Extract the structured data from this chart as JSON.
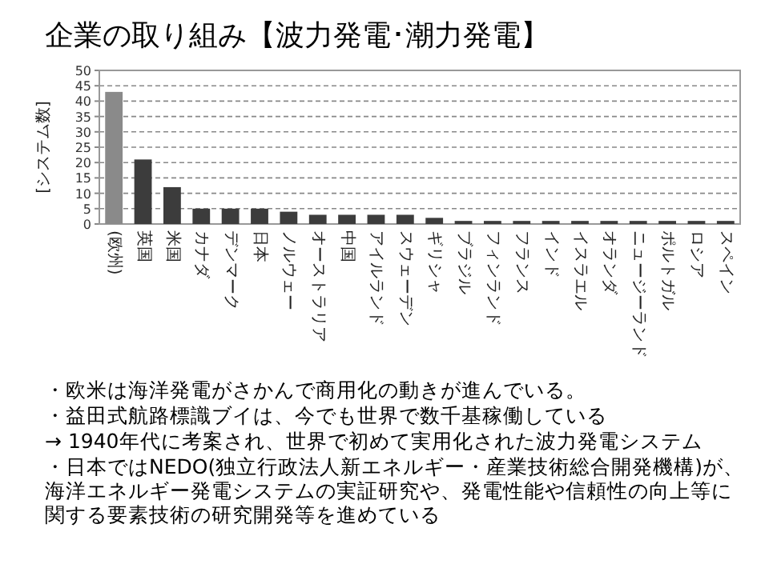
{
  "chart_data": {
    "type": "bar",
    "title": "企業の取り組み【波力発電･潮力発電】",
    "ylabel": "[システム数]",
    "categories": [
      "(欧州)",
      "英国",
      "米国",
      "カナダ",
      "デンマーク",
      "日本",
      "ノルウェー",
      "オーストラリア",
      "中国",
      "アイルランド",
      "スウェーデン",
      "ギリシャ",
      "ブラジル",
      "フィンランド",
      "フランス",
      "インド",
      "イスラエル",
      "オランダ",
      "ニュージーランド",
      "ポルトガル",
      "ロシア",
      "スペイン"
    ],
    "values": [
      43,
      21,
      12,
      5,
      5,
      5,
      4,
      3,
      3,
      3,
      3,
      2,
      1,
      1,
      1,
      1,
      1,
      1,
      1,
      1,
      1,
      1
    ],
    "colors": [
      "#8a8a8a",
      "#3c3c3c",
      "#3c3c3c",
      "#3c3c3c",
      "#3c3c3c",
      "#3c3c3c",
      "#3c3c3c",
      "#3c3c3c",
      "#3c3c3c",
      "#3c3c3c",
      "#3c3c3c",
      "#3c3c3c",
      "#3c3c3c",
      "#3c3c3c",
      "#3c3c3c",
      "#3c3c3c",
      "#3c3c3c",
      "#3c3c3c",
      "#3c3c3c",
      "#3c3c3c",
      "#3c3c3c",
      "#3c3c3c"
    ],
    "ylim": [
      0,
      50
    ],
    "yticks": [
      0,
      5,
      10,
      15,
      20,
      25,
      30,
      35,
      40,
      45,
      50
    ],
    "grid": "y",
    "annotations": [
      "・欧米は海洋発電がさかんで商用化の動きが進んでいる。",
      "・益田式航路標識ブイは、今でも世界で数千基稼働している",
      "→ 1940年代に考案され、世界で初めて実用化された波力発電システム",
      "・日本ではNEDO(独立行政法人新エネルギー・産業技術総合開発機構)が、海洋エネルギー発電システムの実証研究や、発電性能や信頼性の向上等に関する要素技術の研究開発等を進めている"
    ]
  }
}
